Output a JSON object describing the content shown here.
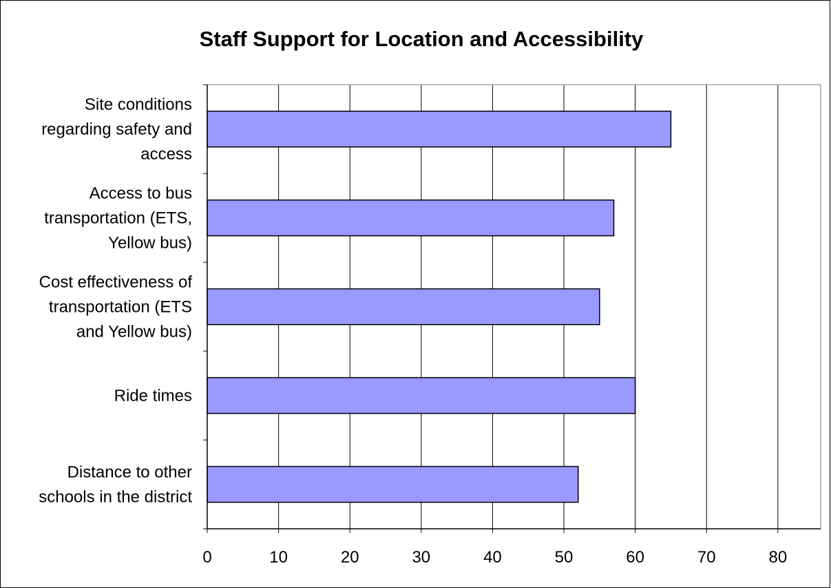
{
  "chart_data": {
    "type": "bar",
    "orientation": "horizontal",
    "title": "Staff Support for Location and Accessibility",
    "xlabel": "",
    "ylabel": "",
    "categories": [
      [
        "Site conditions",
        "regarding safety and",
        "access"
      ],
      [
        "Access to bus",
        "transportation (ETS,",
        "Yellow bus)"
      ],
      [
        "Cost effectiveness of",
        "transportation (ETS",
        "and Yellow bus)"
      ],
      [
        "Ride times"
      ],
      [
        "Distance to other",
        "schools in the district"
      ]
    ],
    "values": [
      65,
      57,
      55,
      60,
      52
    ],
    "xlim": [
      0,
      86
    ],
    "xticks": [
      0,
      10,
      20,
      30,
      40,
      50,
      60,
      70,
      80
    ],
    "grid": "vertical",
    "legend": "none",
    "colors": {
      "bar_fill": "#9999FF",
      "bar_stroke": "#000000",
      "grid": "#000000"
    }
  }
}
